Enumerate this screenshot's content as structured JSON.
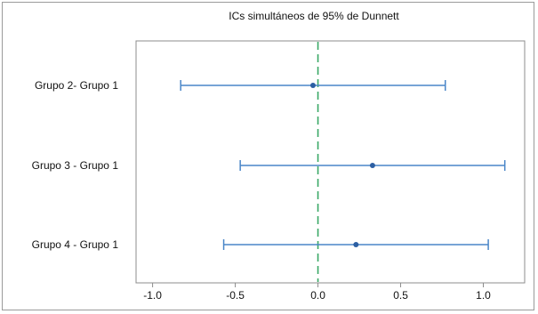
{
  "chart_data": {
    "type": "interval",
    "title": "ICs simultáneos de 95% de Dunnett",
    "categories": [
      "Grupo 2- Grupo 1",
      "Grupo 3 - Grupo 1",
      "Grupo 4 - Grupo 1"
    ],
    "intervals": [
      {
        "label": "Grupo 2- Grupo 1",
        "lower": -0.83,
        "estimate": -0.03,
        "upper": 0.77
      },
      {
        "label": "Grupo 3 - Grupo 1",
        "lower": -0.47,
        "estimate": 0.33,
        "upper": 1.13
      },
      {
        "label": "Grupo 4 - Grupo 1",
        "lower": -0.57,
        "estimate": 0.23,
        "upper": 1.03
      }
    ],
    "x_ticks": [
      -1.0,
      -0.5,
      0.0,
      0.5,
      1.0
    ],
    "x_tick_labels": [
      "-1.0",
      "-0.5",
      "0.0",
      "0.5",
      "1.0"
    ],
    "xlim": [
      -1.1,
      1.25
    ],
    "reference_line": 0.0,
    "grid": false,
    "colors": {
      "interval": "#4a86c8",
      "reference": "#3aa866",
      "axis": "#8c8c8c"
    }
  }
}
